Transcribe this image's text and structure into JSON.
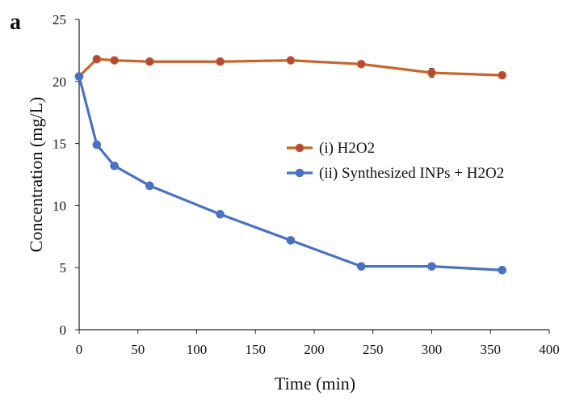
{
  "panel_label": "a",
  "chart_data": {
    "type": "line",
    "title": "",
    "xlabel": "Time (min)",
    "ylabel": "Concentration (mg/L)",
    "xlim": [
      0,
      400
    ],
    "ylim": [
      0,
      25
    ],
    "x_ticks": [
      0,
      50,
      100,
      150,
      200,
      250,
      300,
      350,
      400
    ],
    "y_ticks": [
      0,
      5,
      10,
      15,
      20,
      25
    ],
    "grid": false,
    "legend_position": "center-right",
    "series": [
      {
        "name": "(i) H2O2",
        "color": "#c8642a",
        "marker_color": "#b5483a",
        "x": [
          0,
          15,
          30,
          60,
          120,
          180,
          240,
          300,
          360
        ],
        "y": [
          20.4,
          21.8,
          21.7,
          21.6,
          21.6,
          21.7,
          21.4,
          20.7,
          20.5
        ],
        "error": [
          0,
          0.15,
          0.1,
          0.1,
          0.1,
          0.15,
          0.15,
          0.35,
          0.15
        ]
      },
      {
        "name": "(ii) Synthesized INPs + H2O2",
        "color": "#4a72c4",
        "marker_color": "#4a72c4",
        "x": [
          0,
          15,
          30,
          60,
          120,
          180,
          240,
          300,
          360
        ],
        "y": [
          20.4,
          14.9,
          13.2,
          11.6,
          9.3,
          7.2,
          5.1,
          5.1,
          4.8
        ],
        "error": [
          0,
          0.2,
          0.2,
          0.2,
          0.15,
          0.15,
          0.15,
          0.15,
          0.2
        ]
      }
    ]
  }
}
